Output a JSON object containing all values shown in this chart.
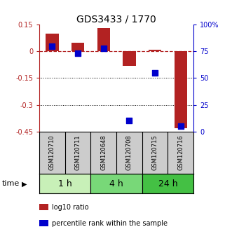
{
  "title": "GDS3433 / 1770",
  "samples": [
    "GSM120710",
    "GSM120711",
    "GSM120648",
    "GSM120708",
    "GSM120715",
    "GSM120716"
  ],
  "log10_ratio": [
    0.1,
    0.05,
    0.13,
    -0.08,
    0.01,
    -0.43
  ],
  "percentile_rank": [
    80,
    73,
    78,
    10,
    55,
    5
  ],
  "ylim_left": [
    -0.45,
    0.15
  ],
  "ylim_right": [
    0,
    100
  ],
  "yticks_left": [
    0.15,
    0.0,
    -0.15,
    -0.3,
    -0.45
  ],
  "ytick_labels_left": [
    "0.15",
    "0",
    "-0.15",
    "-0.3",
    "-0.45"
  ],
  "yticks_right": [
    100,
    75,
    50,
    25,
    0
  ],
  "ytick_labels_right": [
    "100%",
    "75",
    "50",
    "25",
    "0"
  ],
  "hlines_dotted": [
    -0.15,
    -0.3
  ],
  "hline_dashed": 0.0,
  "bar_color": "#b22222",
  "dot_color": "#0000cc",
  "bar_width": 0.5,
  "dot_size": 40,
  "time_groups": [
    {
      "label": "1 h",
      "start": 0,
      "end": 2,
      "color": "#c8f0b8"
    },
    {
      "label": "4 h",
      "start": 2,
      "end": 4,
      "color": "#78d878"
    },
    {
      "label": "24 h",
      "start": 4,
      "end": 6,
      "color": "#44c044"
    }
  ],
  "time_label": "time",
  "legend_items": [
    {
      "label": "log10 ratio",
      "color": "#b22222"
    },
    {
      "label": "percentile rank within the sample",
      "color": "#0000cc"
    }
  ],
  "bg_color": "#ffffff",
  "xlabels_bg": "#cccccc",
  "title_fontsize": 10,
  "tick_fontsize": 7,
  "sample_fontsize": 6,
  "time_fontsize": 9,
  "legend_fontsize": 7
}
